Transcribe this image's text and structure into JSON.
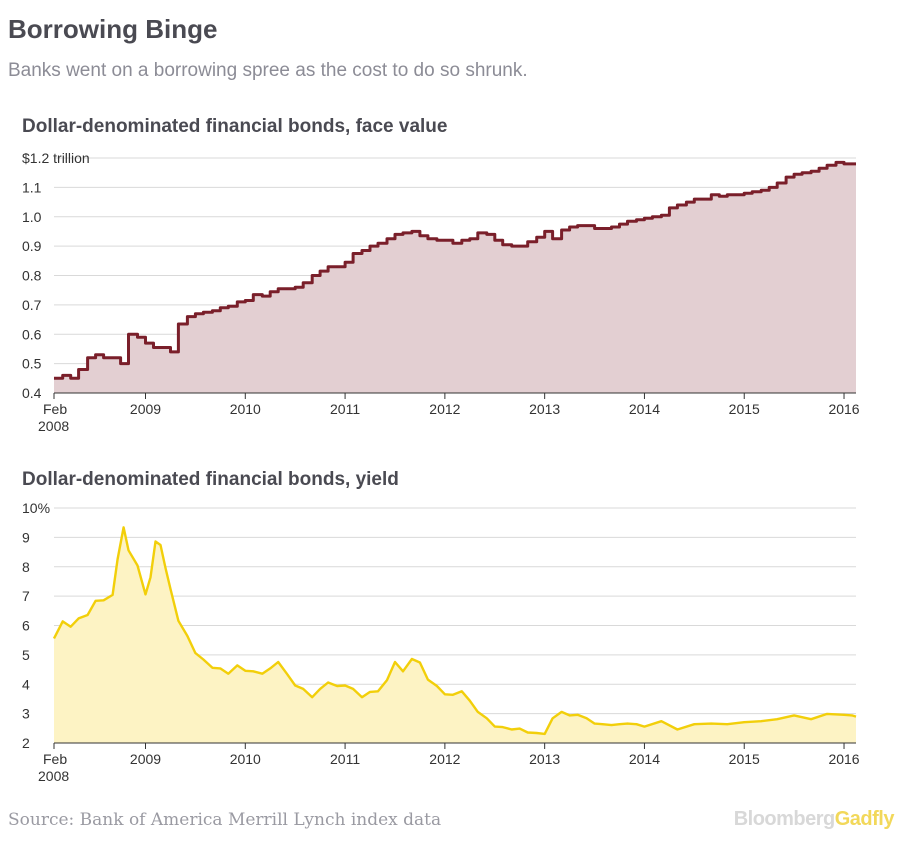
{
  "title": "Borrowing Binge",
  "subtitle": "Banks went on a borrowing spree as the cost to do so shrunk.",
  "source": "Source: Bank of America Merrill Lynch index data",
  "brand": {
    "part1": "Bloomberg",
    "part2": "Gadfly"
  },
  "colors": {
    "line1": "#7a1f2a",
    "fill1": "#e3cfd2",
    "line2": "#f2cf0a",
    "fill2": "#fdf3c4",
    "grid": "#d9d9d9"
  },
  "chart_data": [
    {
      "type": "area",
      "title": "Dollar-denominated financial bonds, face value",
      "step": true,
      "ylim": [
        0.4,
        1.2
      ],
      "yticks": [
        "$1.2 trillion",
        "1.1",
        "1.0",
        "0.9",
        "0.8",
        "0.7",
        "0.6",
        "0.5",
        "0.4"
      ],
      "ytick_values": [
        1.2,
        1.1,
        1.0,
        0.9,
        0.8,
        0.7,
        0.6,
        0.5,
        0.4
      ],
      "xlim": [
        2008.083,
        2016.12
      ],
      "xticks": [
        "Feb 2008",
        "2009",
        "2010",
        "2011",
        "2012",
        "2013",
        "2014",
        "2015",
        "2016"
      ],
      "xtick_values": [
        2008.083,
        2009,
        2010,
        2011,
        2012,
        2013,
        2014,
        2015,
        2016
      ],
      "grid": true,
      "x": [
        2008.08,
        2008.17,
        2008.25,
        2008.33,
        2008.42,
        2008.5,
        2008.58,
        2008.67,
        2008.75,
        2008.83,
        2008.92,
        2009.0,
        2009.08,
        2009.17,
        2009.25,
        2009.33,
        2009.42,
        2009.5,
        2009.58,
        2009.67,
        2009.75,
        2009.83,
        2009.92,
        2010.0,
        2010.08,
        2010.17,
        2010.25,
        2010.33,
        2010.42,
        2010.5,
        2010.58,
        2010.67,
        2010.75,
        2010.83,
        2010.92,
        2011.0,
        2011.08,
        2011.17,
        2011.25,
        2011.33,
        2011.42,
        2011.5,
        2011.58,
        2011.67,
        2011.75,
        2011.83,
        2011.92,
        2012.0,
        2012.08,
        2012.17,
        2012.25,
        2012.33,
        2012.42,
        2012.5,
        2012.58,
        2012.67,
        2012.75,
        2012.83,
        2012.92,
        2013.0,
        2013.08,
        2013.17,
        2013.25,
        2013.33,
        2013.42,
        2013.5,
        2013.58,
        2013.67,
        2013.75,
        2013.83,
        2013.92,
        2014.0,
        2014.08,
        2014.17,
        2014.25,
        2014.33,
        2014.42,
        2014.5,
        2014.58,
        2014.67,
        2014.75,
        2014.83,
        2014.92,
        2015.0,
        2015.08,
        2015.17,
        2015.25,
        2015.33,
        2015.42,
        2015.5,
        2015.58,
        2015.67,
        2015.75,
        2015.83,
        2015.92,
        2016.0,
        2016.08
      ],
      "values": [
        0.45,
        0.46,
        0.45,
        0.48,
        0.52,
        0.53,
        0.52,
        0.52,
        0.5,
        0.6,
        0.59,
        0.57,
        0.555,
        0.555,
        0.54,
        0.635,
        0.66,
        0.67,
        0.675,
        0.68,
        0.69,
        0.695,
        0.71,
        0.715,
        0.735,
        0.73,
        0.745,
        0.755,
        0.755,
        0.76,
        0.775,
        0.8,
        0.815,
        0.83,
        0.83,
        0.845,
        0.875,
        0.885,
        0.9,
        0.91,
        0.925,
        0.94,
        0.945,
        0.95,
        0.935,
        0.925,
        0.92,
        0.92,
        0.91,
        0.92,
        0.925,
        0.945,
        0.94,
        0.92,
        0.905,
        0.9,
        0.9,
        0.915,
        0.93,
        0.95,
        0.925,
        0.955,
        0.965,
        0.97,
        0.97,
        0.96,
        0.96,
        0.965,
        0.975,
        0.985,
        0.99,
        0.995,
        1.0,
        1.005,
        1.03,
        1.04,
        1.05,
        1.06,
        1.06,
        1.075,
        1.07,
        1.075,
        1.075,
        1.08,
        1.085,
        1.09,
        1.1,
        1.115,
        1.135,
        1.145,
        1.15,
        1.155,
        1.165,
        1.175,
        1.185,
        1.18,
        1.18
      ]
    },
    {
      "type": "area",
      "title": "Dollar-denominated financial bonds, yield",
      "ylim": [
        2,
        10
      ],
      "yticks": [
        "10%",
        "9",
        "8",
        "7",
        "6",
        "5",
        "4",
        "3",
        "2"
      ],
      "ytick_values": [
        10,
        9,
        8,
        7,
        6,
        5,
        4,
        3,
        2
      ],
      "xlim": [
        2008.083,
        2016.12
      ],
      "xticks": [
        "Feb 2008",
        "2009",
        "2010",
        "2011",
        "2012",
        "2013",
        "2014",
        "2015",
        "2016"
      ],
      "xtick_values": [
        2008.083,
        2009,
        2010,
        2011,
        2012,
        2013,
        2014,
        2015,
        2016
      ],
      "grid": true,
      "x": [
        2008.08,
        2008.17,
        2008.25,
        2008.33,
        2008.42,
        2008.5,
        2008.58,
        2008.67,
        2008.72,
        2008.78,
        2008.83,
        2008.92,
        2009.0,
        2009.05,
        2009.1,
        2009.15,
        2009.2,
        2009.25,
        2009.33,
        2009.42,
        2009.5,
        2009.58,
        2009.67,
        2009.75,
        2009.83,
        2009.92,
        2010.0,
        2010.08,
        2010.17,
        2010.25,
        2010.33,
        2010.42,
        2010.5,
        2010.58,
        2010.67,
        2010.75,
        2010.83,
        2010.92,
        2011.0,
        2011.08,
        2011.17,
        2011.25,
        2011.33,
        2011.42,
        2011.5,
        2011.58,
        2011.67,
        2011.75,
        2011.83,
        2011.92,
        2012.0,
        2012.08,
        2012.17,
        2012.25,
        2012.33,
        2012.42,
        2012.5,
        2012.58,
        2012.67,
        2012.75,
        2012.83,
        2012.92,
        2013.0,
        2013.08,
        2013.17,
        2013.25,
        2013.33,
        2013.42,
        2013.5,
        2013.58,
        2013.67,
        2013.75,
        2013.83,
        2013.92,
        2014.0,
        2014.17,
        2014.33,
        2014.5,
        2014.67,
        2014.83,
        2015.0,
        2015.17,
        2015.33,
        2015.5,
        2015.67,
        2015.83,
        2016.0,
        2016.08
      ],
      "values": [
        5.6,
        6.1,
        6.0,
        6.2,
        6.4,
        6.8,
        6.9,
        7.0,
        8.3,
        9.3,
        8.6,
        8.0,
        7.1,
        7.6,
        8.9,
        8.7,
        8.0,
        7.2,
        6.2,
        5.6,
        5.1,
        4.8,
        4.6,
        4.5,
        4.4,
        4.6,
        4.5,
        4.4,
        4.4,
        4.5,
        4.8,
        4.3,
        4.0,
        3.8,
        3.6,
        3.8,
        4.1,
        3.9,
        4.0,
        3.8,
        3.6,
        3.7,
        3.8,
        4.1,
        4.8,
        4.4,
        4.9,
        4.7,
        4.2,
        3.9,
        3.7,
        3.6,
        3.8,
        3.4,
        3.1,
        2.8,
        2.6,
        2.5,
        2.5,
        2.45,
        2.4,
        2.3,
        2.35,
        2.8,
        3.1,
        2.9,
        3.0,
        2.8,
        2.7,
        2.6,
        2.65,
        2.6,
        2.7,
        2.6,
        2.6,
        2.7,
        2.5,
        2.6,
        2.7,
        2.6,
        2.75,
        2.7,
        2.85,
        2.9,
        2.85,
        2.95,
        3.0,
        2.9
      ]
    }
  ]
}
